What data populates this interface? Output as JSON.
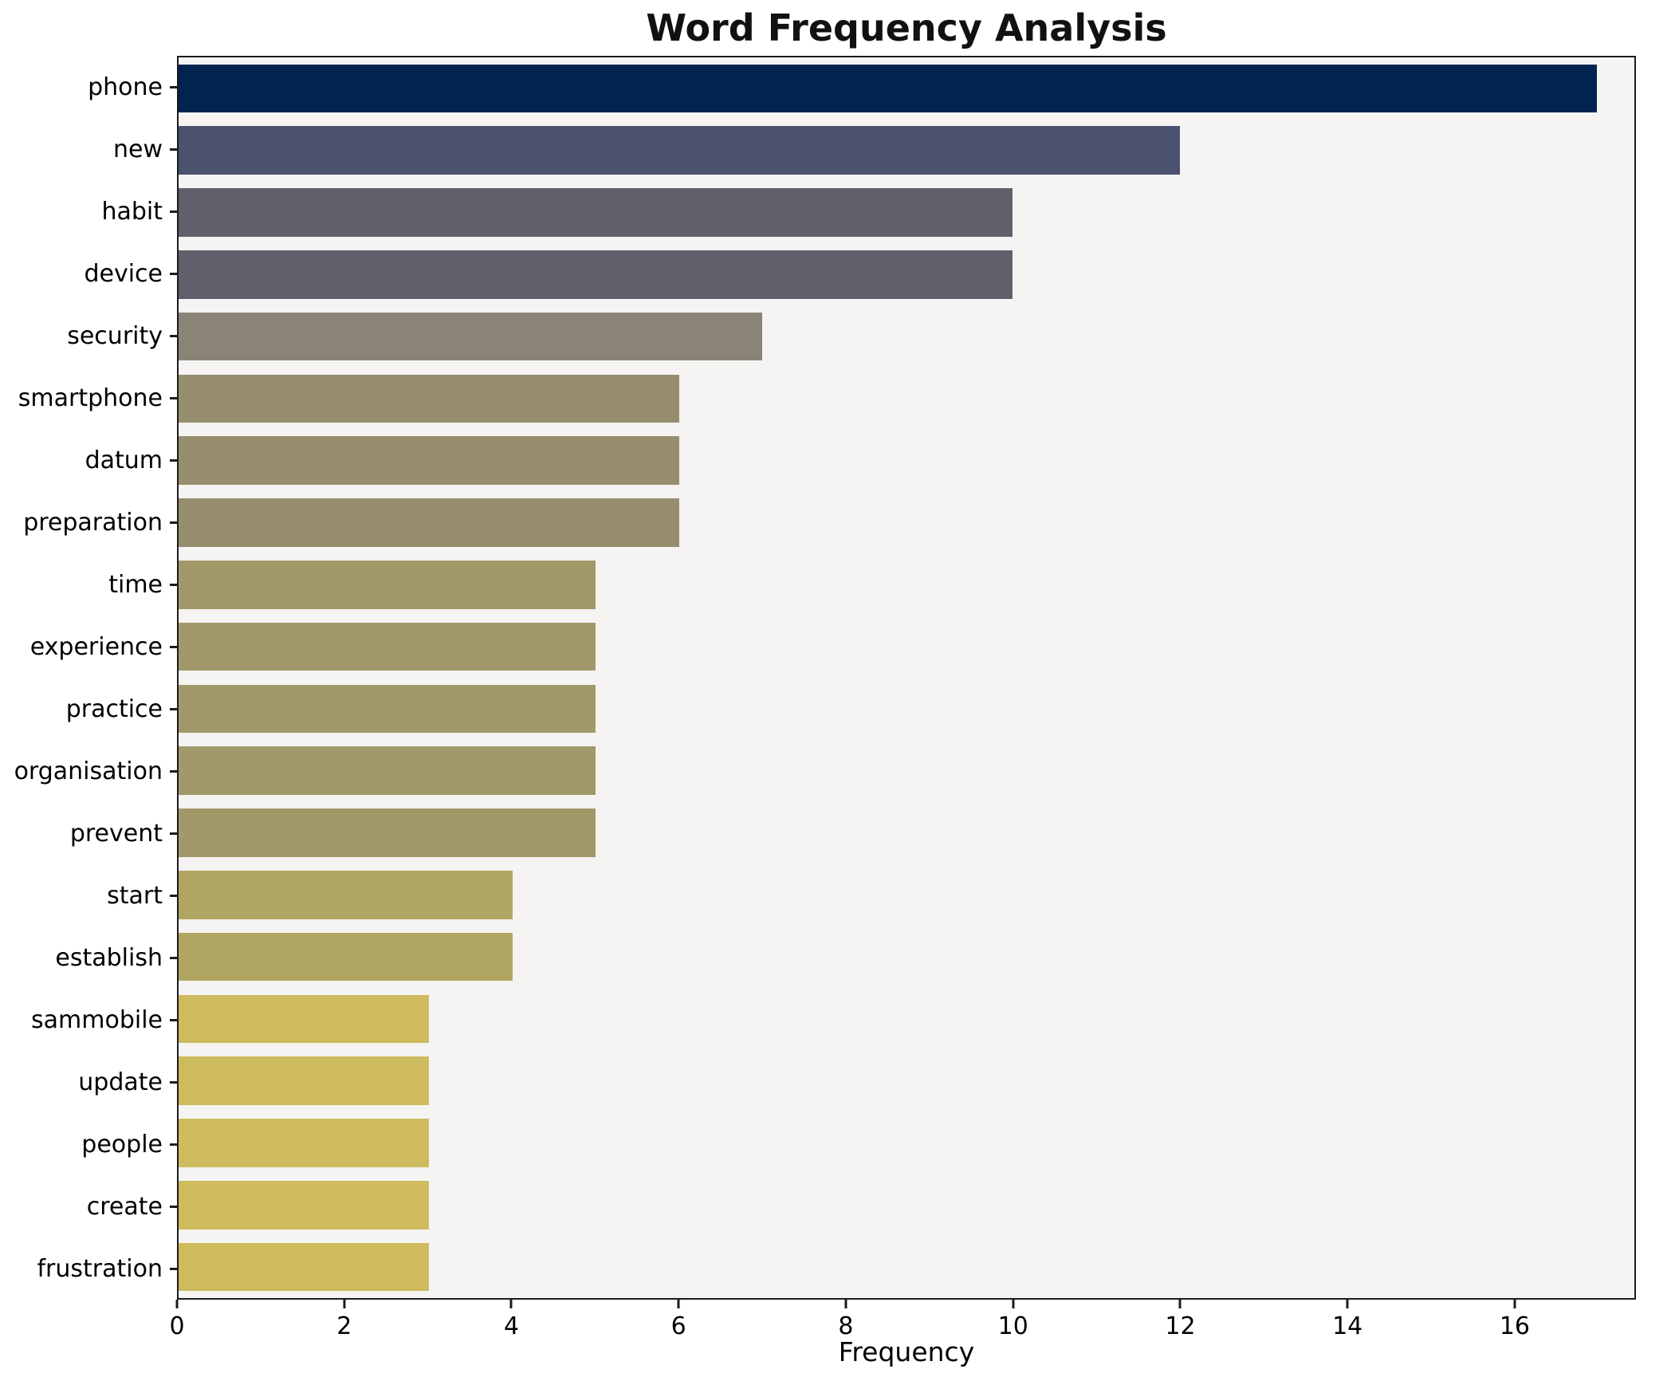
{
  "title": "Word Frequency Analysis",
  "chart_data": {
    "type": "bar",
    "orientation": "horizontal",
    "title": "Word Frequency Analysis",
    "xlabel": "Frequency",
    "ylabel": "",
    "xlim": [
      0,
      17.45
    ],
    "xticks": [
      0,
      2,
      4,
      6,
      8,
      10,
      12,
      14,
      16
    ],
    "grid": false,
    "legend": "none",
    "categories": [
      "phone",
      "new",
      "habit",
      "device",
      "security",
      "smartphone",
      "datum",
      "preparation",
      "time",
      "experience",
      "practice",
      "organisation",
      "prevent",
      "start",
      "establish",
      "sammobile",
      "update",
      "people",
      "create",
      "frustration"
    ],
    "values": [
      17,
      12,
      10,
      10,
      7,
      6,
      6,
      6,
      5,
      5,
      5,
      5,
      5,
      4,
      4,
      3,
      3,
      3,
      3,
      3
    ],
    "bar_colors": [
      "#00234f",
      "#4a5270",
      "#5f606c",
      "#5f606c",
      "#8a8477",
      "#968e6f",
      "#968e6f",
      "#968e6f",
      "#a2996a",
      "#a2996a",
      "#a2996a",
      "#a2996a",
      "#a2996a",
      "#b1a562",
      "#b1a562",
      "#cdbb5d",
      "#cdbb5d",
      "#cdbb5d",
      "#cdbb5d",
      "#cdbb5d"
    ],
    "plot_bg": "#f5f4f2",
    "fig_bg": "#ffffff",
    "spine_color": "#1c1c1c",
    "text_color": "#000000"
  }
}
